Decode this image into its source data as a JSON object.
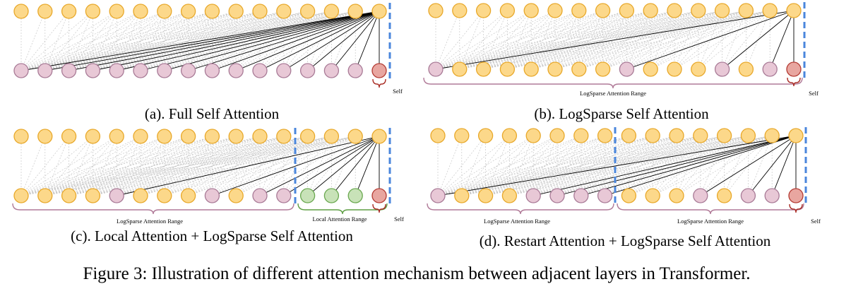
{
  "figure_caption": "Figure 3: Illustration of different attention mechanism between adjacent layers in Transformer.",
  "colors": {
    "attended_fill": "#e8c8d6",
    "attended_stroke": "#a87a96",
    "default_fill": "#fcd88a",
    "default_stroke": "#e8a82a",
    "self_fill": "#e8a6a0",
    "self_stroke": "#b33a32",
    "local_fill": "#c8e2b8",
    "local_stroke": "#6aa850",
    "dashed_divider": "#4a86dc",
    "brace_pink": "#b07a98",
    "brace_green": "#5e9e44",
    "brace_red": "#a82a22",
    "active_line": "#000000",
    "inactive_line": "#c8c8c8"
  },
  "panels": [
    {
      "id": "a",
      "caption": "(a). Full Self Attention",
      "bottom_types": [
        "a",
        "a",
        "a",
        "a",
        "a",
        "a",
        "a",
        "a",
        "a",
        "a",
        "a",
        "a",
        "a",
        "a",
        "a",
        "s"
      ],
      "labels": {
        "self": "Self"
      }
    },
    {
      "id": "b",
      "caption": "(b). LogSparse Self Attention",
      "bottom_types": [
        "a",
        "d",
        "d",
        "d",
        "d",
        "d",
        "d",
        "d",
        "a",
        "d",
        "d",
        "d",
        "a",
        "d",
        "a",
        "s"
      ],
      "labels": {
        "range1": "LogSparse Attention Range",
        "self": "Self"
      }
    },
    {
      "id": "c",
      "caption": "(c). Local Attention + LogSparse Self Attention",
      "bottom_types": [
        "d",
        "d",
        "d",
        "d",
        "a",
        "d",
        "d",
        "d",
        "a",
        "d",
        "a",
        "a",
        "l",
        "l",
        "l",
        "s"
      ],
      "labels": {
        "range1": "LogSparse Attention Range",
        "range2": "Local Attention Range",
        "self": "Self"
      }
    },
    {
      "id": "d",
      "caption": "(d). Restart Attention + LogSparse Self Attention",
      "bottom_types": [
        "a",
        "d",
        "d",
        "d",
        "a",
        "a",
        "a",
        "a",
        "d",
        "d",
        "d",
        "a",
        "d",
        "a",
        "a",
        "s"
      ],
      "labels": {
        "range1": "LogSparse Attention Range",
        "range2": "LogSparse Attention Range",
        "self": "Self"
      }
    }
  ]
}
